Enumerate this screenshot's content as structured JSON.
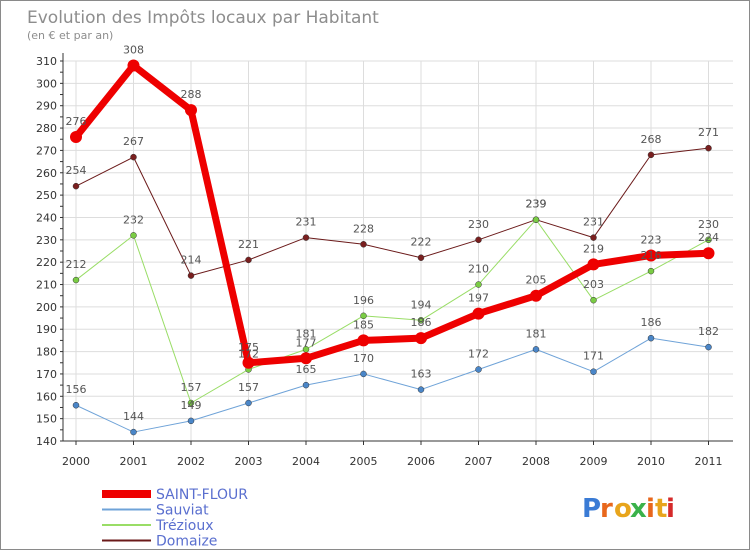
{
  "chart_data": {
    "type": "line",
    "title": "Evolution des Impôts locaux par Habitant",
    "subtitle": "(en € et par an)",
    "categories": [
      "2000",
      "2001",
      "2002",
      "2003",
      "2004",
      "2005",
      "2006",
      "2007",
      "2008",
      "2009",
      "2010",
      "2011"
    ],
    "ylim": [
      140,
      310
    ],
    "yticks": [
      140,
      150,
      160,
      170,
      180,
      190,
      200,
      210,
      220,
      230,
      240,
      250,
      260,
      270,
      280,
      290,
      300,
      310
    ],
    "grid": true,
    "legend_position": "bottom-left",
    "series": [
      {
        "name": "Domaize",
        "color": "#6b1a1a",
        "markerColor": "#7a1f1f",
        "width": 1,
        "values": [
          254,
          267,
          214,
          221,
          231,
          228,
          222,
          230,
          239,
          231,
          268,
          271
        ]
      },
      {
        "name": "Trézioux",
        "color": "#99dd66",
        "markerColor": "#7acc44",
        "width": 1,
        "values": [
          212,
          232,
          157,
          172,
          181,
          196,
          194,
          210,
          239,
          203,
          216,
          230
        ]
      },
      {
        "name": "Sauviat",
        "color": "#6fa3d8",
        "markerColor": "#4a86c8",
        "width": 1,
        "values": [
          156,
          144,
          149,
          157,
          165,
          170,
          163,
          172,
          181,
          171,
          186,
          182
        ]
      },
      {
        "name": "SAINT-FLOUR",
        "color": "#ee0000",
        "markerColor": "#ee0000",
        "width": 7,
        "values": [
          276,
          308,
          288,
          175,
          177,
          185,
          186,
          197,
          205,
          219,
          223,
          224
        ]
      }
    ],
    "legend_order": [
      "SAINT-FLOUR",
      "Sauviat",
      "Trézioux",
      "Domaize"
    ],
    "data_label_text": {
      "Domaize": [
        "254",
        "267",
        "214",
        "221",
        "231",
        "228",
        "222",
        "230",
        "239",
        "231",
        "268",
        "271"
      ],
      "Trézioux": [
        "212",
        "232",
        "157",
        "172",
        "181",
        "196",
        "194",
        "210",
        "239",
        "203",
        "216",
        "230"
      ],
      "Sauviat": [
        "156",
        "144",
        "149",
        "157",
        "165",
        "170",
        "163",
        "172",
        "181",
        "171",
        "186",
        "182"
      ],
      "SAINT-FLOUR": [
        "276",
        "308",
        "288",
        "175",
        "177",
        "185",
        "186",
        "197",
        "205",
        "219",
        "223",
        "224"
      ]
    }
  },
  "logo": {
    "text": "Proxiti",
    "letter_colors": [
      "#3a7bd5",
      "#e8671c",
      "#e8a51c",
      "#3ab24a",
      "#e8671c",
      "#e8a51c",
      "#d52a2a"
    ]
  }
}
